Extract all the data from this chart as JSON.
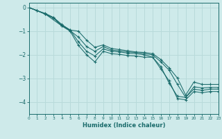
{
  "xlabel": "Humidex (Indice chaleur)",
  "xlim": [
    0,
    23
  ],
  "ylim": [
    -4.5,
    0.2
  ],
  "xticks": [
    0,
    1,
    2,
    3,
    4,
    5,
    6,
    7,
    8,
    9,
    10,
    11,
    12,
    13,
    14,
    15,
    16,
    17,
    18,
    19,
    20,
    21,
    22,
    23
  ],
  "yticks": [
    0,
    -1,
    -2,
    -3,
    -4
  ],
  "bg_color": "#ceeaea",
  "line_color": "#1a6b6b",
  "grid_color": "#b8dada",
  "series": [
    {
      "x": [
        0,
        1,
        2,
        3,
        4,
        5,
        6,
        7,
        8,
        9,
        10,
        11,
        12,
        13,
        14,
        15,
        16,
        17,
        18,
        19,
        20,
        21,
        22,
        23
      ],
      "y": [
        0.0,
        -0.13,
        -0.28,
        -0.45,
        -0.75,
        -0.95,
        -1.45,
        -1.85,
        -2.05,
        -1.75,
        -1.85,
        -1.88,
        -1.93,
        -1.95,
        -2.0,
        -2.1,
        -2.5,
        -3.2,
        -3.75,
        -3.8,
        -3.45,
        -3.5,
        -3.45,
        -3.45
      ]
    },
    {
      "x": [
        0,
        1,
        2,
        3,
        4,
        5,
        6,
        7,
        8,
        9,
        10,
        11,
        12,
        13,
        14,
        15,
        16,
        17,
        18,
        19,
        20,
        21,
        22,
        23
      ],
      "y": [
        0.0,
        -0.13,
        -0.28,
        -0.45,
        -0.78,
        -0.98,
        -1.25,
        -1.65,
        -1.85,
        -1.65,
        -1.8,
        -1.83,
        -1.88,
        -1.9,
        -1.95,
        -2.0,
        -2.3,
        -2.65,
        -3.25,
        -3.8,
        -3.35,
        -3.4,
        -3.38,
        -3.38
      ]
    },
    {
      "x": [
        0,
        1,
        2,
        3,
        4,
        5,
        6,
        7,
        8,
        9,
        10,
        11,
        12,
        13,
        14,
        15,
        16,
        17,
        18,
        19,
        20,
        21,
        22,
        23
      ],
      "y": [
        0.0,
        -0.13,
        -0.25,
        -0.42,
        -0.72,
        -0.95,
        -1.0,
        -1.38,
        -1.68,
        -1.58,
        -1.73,
        -1.78,
        -1.83,
        -1.88,
        -1.9,
        -1.95,
        -2.2,
        -2.55,
        -2.98,
        -3.7,
        -3.15,
        -3.25,
        -3.25,
        -3.25
      ]
    },
    {
      "x": [
        0,
        2,
        4,
        5,
        6,
        7,
        8,
        9,
        10,
        11,
        12,
        13,
        14,
        15,
        16,
        17,
        18,
        19,
        20,
        21,
        22,
        23
      ],
      "y": [
        0.0,
        -0.28,
        -0.78,
        -1.0,
        -1.6,
        -2.0,
        -2.3,
        -1.85,
        -1.95,
        -1.98,
        -2.03,
        -2.05,
        -2.1,
        -2.1,
        -2.6,
        -3.1,
        -3.85,
        -3.9,
        -3.55,
        -3.6,
        -3.55,
        -3.55
      ]
    }
  ]
}
